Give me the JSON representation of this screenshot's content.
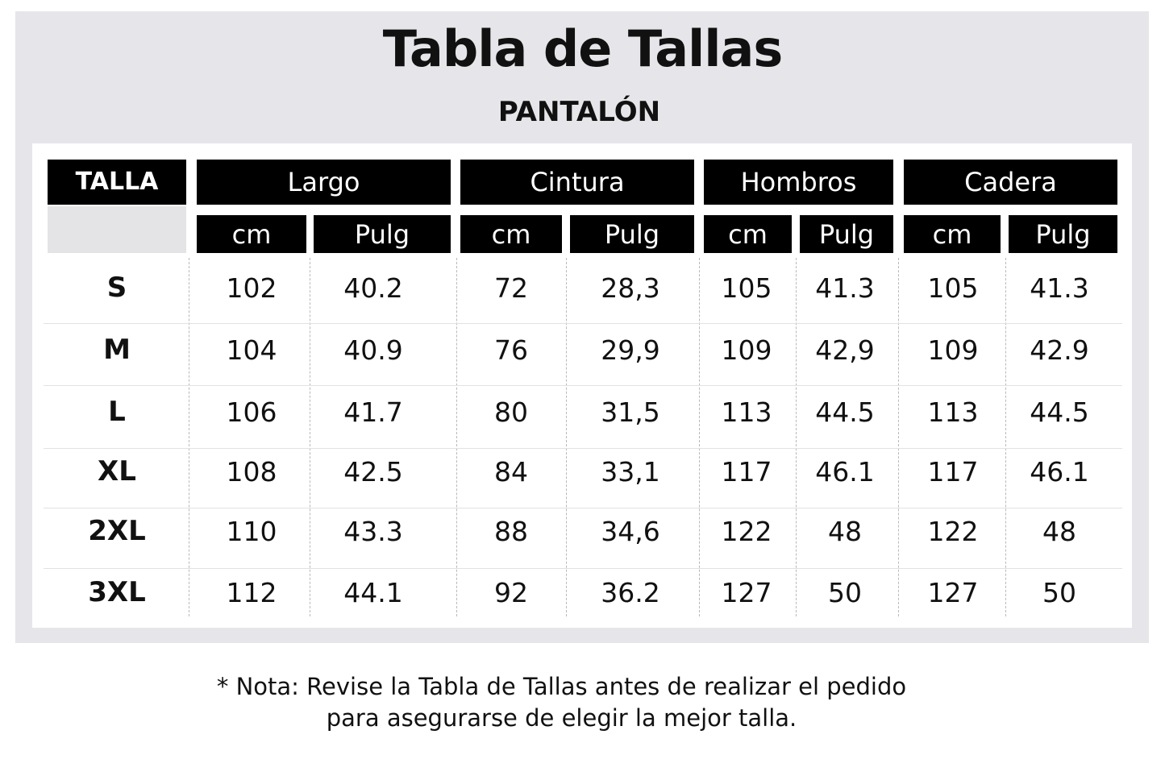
{
  "title": "Tabla de Tallas",
  "subtitle": "PANTALÓN",
  "headers": {
    "size": "TALLA",
    "groups": [
      "Largo",
      "Cintura",
      "Hombros",
      "Cadera"
    ],
    "units": [
      "cm",
      "Pulg",
      "cm",
      "Pulg",
      "cm",
      "Pulg",
      "cm",
      "Pulg"
    ]
  },
  "rows": [
    {
      "size": "S",
      "values": [
        "102",
        "40.2",
        "72",
        "28,3",
        "105",
        "41.3",
        "105",
        "41.3"
      ]
    },
    {
      "size": "M",
      "values": [
        "104",
        "40.9",
        "76",
        "29,9",
        "109",
        "42,9",
        "109",
        "42.9"
      ]
    },
    {
      "size": "L",
      "values": [
        "106",
        "41.7",
        "80",
        "31,5",
        "113",
        "44.5",
        "113",
        "44.5"
      ]
    },
    {
      "size": "XL",
      "values": [
        "108",
        "42.5",
        "84",
        "33,1",
        "117",
        "46.1",
        "117",
        "46.1"
      ]
    },
    {
      "size": "2XL",
      "values": [
        "110",
        "43.3",
        "88",
        "34,6",
        "122",
        "48",
        "122",
        "48"
      ]
    },
    {
      "size": "3XL",
      "values": [
        "112",
        "44.1",
        "92",
        "36.2",
        "127",
        "50",
        "127",
        "50"
      ]
    }
  ],
  "note": {
    "line1": "* Nota: Revise la Tabla de Tallas antes de realizar el pedido",
    "line2": "para asegurarse de elegir la mejor talla."
  }
}
